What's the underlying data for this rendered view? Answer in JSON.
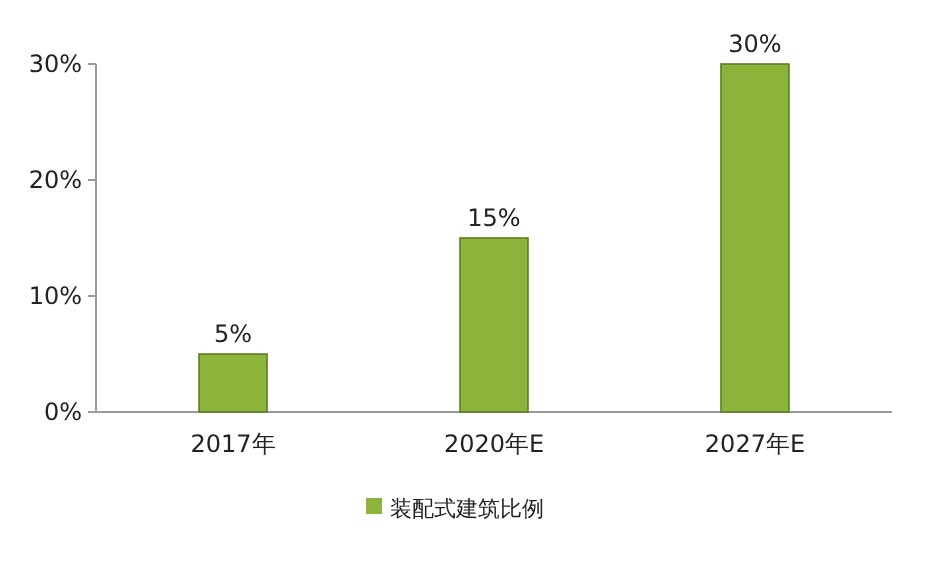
{
  "chart_data": {
    "type": "bar",
    "categories": [
      "2017年",
      "2020年E",
      "2027年E"
    ],
    "series": [
      {
        "name": "装配式建筑比例",
        "color": "#8cb33a",
        "values": [
          5,
          15,
          30
        ],
        "value_labels": [
          "5%",
          "15%",
          "30%"
        ]
      }
    ],
    "ylim": [
      0,
      30
    ],
    "yticks": [
      {
        "value": 0,
        "label": "0%"
      },
      {
        "value": 10,
        "label": "10%"
      },
      {
        "value": 20,
        "label": "20%"
      },
      {
        "value": 30,
        "label": "30%"
      }
    ],
    "legend": "bottom",
    "grid": false
  }
}
